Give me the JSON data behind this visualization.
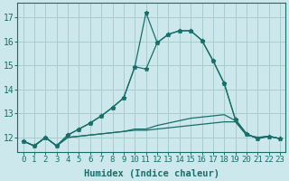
{
  "xlabel": "Humidex (Indice chaleur)",
  "background_color": "#cce8ec",
  "grid_color": "#aacccc",
  "line_color": "#1a6e6a",
  "x_ticks": [
    0,
    1,
    2,
    3,
    4,
    5,
    6,
    7,
    8,
    9,
    10,
    11,
    12,
    13,
    14,
    15,
    16,
    17,
    18,
    19,
    20,
    21,
    22,
    23
  ],
  "y_ticks": [
    12,
    13,
    14,
    15,
    16,
    17
  ],
  "ylim": [
    11.4,
    17.6
  ],
  "xlim": [
    -0.5,
    23.5
  ],
  "series": [
    {
      "y": [
        11.85,
        11.65,
        12.0,
        11.65,
        12.0,
        12.05,
        12.1,
        12.15,
        12.2,
        12.25,
        12.3,
        12.3,
        12.35,
        12.4,
        12.45,
        12.5,
        12.55,
        12.6,
        12.65,
        12.65,
        12.1,
        12.0,
        12.05,
        11.95
      ],
      "marker": false
    },
    {
      "y": [
        11.85,
        11.65,
        12.0,
        11.65,
        12.0,
        12.05,
        12.1,
        12.15,
        12.2,
        12.25,
        12.35,
        12.35,
        12.5,
        12.6,
        12.7,
        12.8,
        12.85,
        12.9,
        12.95,
        12.7,
        12.1,
        12.0,
        12.05,
        11.95
      ],
      "marker": false
    },
    {
      "y": [
        11.85,
        11.65,
        12.0,
        11.65,
        12.1,
        12.35,
        12.6,
        12.9,
        13.25,
        13.65,
        14.95,
        14.85,
        15.95,
        16.3,
        16.45,
        16.45,
        16.05,
        15.2,
        14.25,
        12.75,
        12.15,
        11.95,
        12.05,
        11.95
      ],
      "marker": true
    },
    {
      "y": [
        11.85,
        11.65,
        12.0,
        11.65,
        12.1,
        12.35,
        12.6,
        12.9,
        13.25,
        13.65,
        14.95,
        17.2,
        15.95,
        16.3,
        16.45,
        16.45,
        16.05,
        15.2,
        14.25,
        12.75,
        12.15,
        11.95,
        12.05,
        11.95
      ],
      "marker": true
    }
  ],
  "tick_fontsize": 6.5,
  "xlabel_fontsize": 7.5
}
